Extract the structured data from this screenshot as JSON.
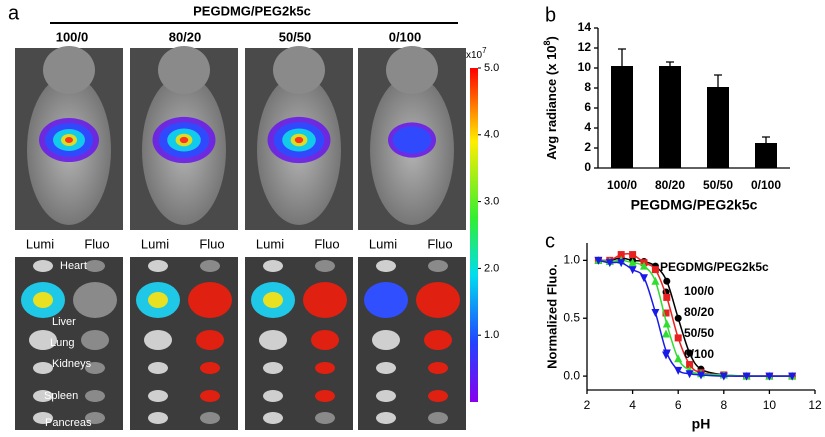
{
  "panel_a": {
    "label": "a",
    "title": "PEGDMG/PEG2k5c",
    "groups": [
      "100/0",
      "80/20",
      "50/50",
      "0/100"
    ],
    "lumi": "Lumi",
    "fluo": "Fluo",
    "organs": [
      "Heart",
      "Liver",
      "Lung",
      "Kidneys",
      "Spleen",
      "Pancreas"
    ],
    "colorbar": {
      "scale_label": "x10",
      "scale_exponent": "7",
      "lim": [
        0,
        5
      ],
      "ticks": [
        {
          "value": 5,
          "label": "5.0"
        },
        {
          "value": 4,
          "label": "4.0"
        },
        {
          "value": 3,
          "label": "3.0"
        },
        {
          "value": 2,
          "label": "2.0"
        },
        {
          "value": 1,
          "label": "1.0"
        }
      ]
    }
  },
  "chart_data": [
    {
      "type": "bar",
      "label": "b",
      "ylabel": "Avg radiance (x 10",
      "ylabel_exponent": "8",
      "ylabel_suffix": ")",
      "xlabel": "PEGDMG/PEG2k5c",
      "categories": [
        "100/0",
        "80/20",
        "50/50",
        "0/100"
      ],
      "values": [
        10.2,
        10.2,
        8.1,
        2.5
      ],
      "errors": [
        1.7,
        0.4,
        1.2,
        0.6
      ],
      "color": "#000000",
      "ylim": [
        0,
        14
      ],
      "yticks": [
        0,
        2,
        4,
        6,
        8,
        10,
        12,
        14
      ]
    },
    {
      "type": "line",
      "label": "c",
      "ylabel": "Normalized Fluo.",
      "xlabel": "pH",
      "legend_title": "PEGDMG/PEG2k5c",
      "x": [
        2.5,
        3,
        3.5,
        4,
        4.5,
        5,
        5.5,
        6,
        6.5,
        7,
        8,
        9,
        10,
        11
      ],
      "series": [
        {
          "name": "100/0",
          "color": "#000000",
          "marker": "circle",
          "values": [
            1.0,
            1.0,
            1.02,
            1.0,
            0.99,
            0.95,
            0.82,
            0.5,
            0.2,
            0.06,
            0.01,
            0.0,
            0.0,
            0.0
          ]
        },
        {
          "name": "80/20",
          "color": "#e82020",
          "marker": "square",
          "values": [
            1.0,
            1.0,
            1.05,
            1.05,
            0.98,
            0.92,
            0.68,
            0.33,
            0.1,
            0.03,
            0.01,
            0.0,
            0.0,
            0.0
          ]
        },
        {
          "name": "50/50",
          "color": "#30dd30",
          "marker": "triangle",
          "values": [
            1.0,
            0.99,
            1.0,
            0.98,
            0.95,
            0.82,
            0.45,
            0.15,
            0.05,
            0.02,
            0.01,
            0.0,
            0.0,
            0.0
          ]
        },
        {
          "name": "0/100",
          "color": "#1a1ae8",
          "marker": "triangle-down",
          "values": [
            1.0,
            0.98,
            0.98,
            0.92,
            0.85,
            0.55,
            0.2,
            0.05,
            0.02,
            0.01,
            0.0,
            0.0,
            0.0,
            0.0
          ]
        }
      ],
      "xlim": [
        2,
        12
      ],
      "xticks": [
        2,
        4,
        6,
        8,
        10,
        12
      ],
      "ylim": [
        -0.12,
        1.15
      ],
      "yticks": [
        {
          "value": 0,
          "label": "0.0"
        },
        {
          "value": 0.5,
          "label": "0.5"
        },
        {
          "value": 1,
          "label": "1.0"
        }
      ]
    }
  ]
}
